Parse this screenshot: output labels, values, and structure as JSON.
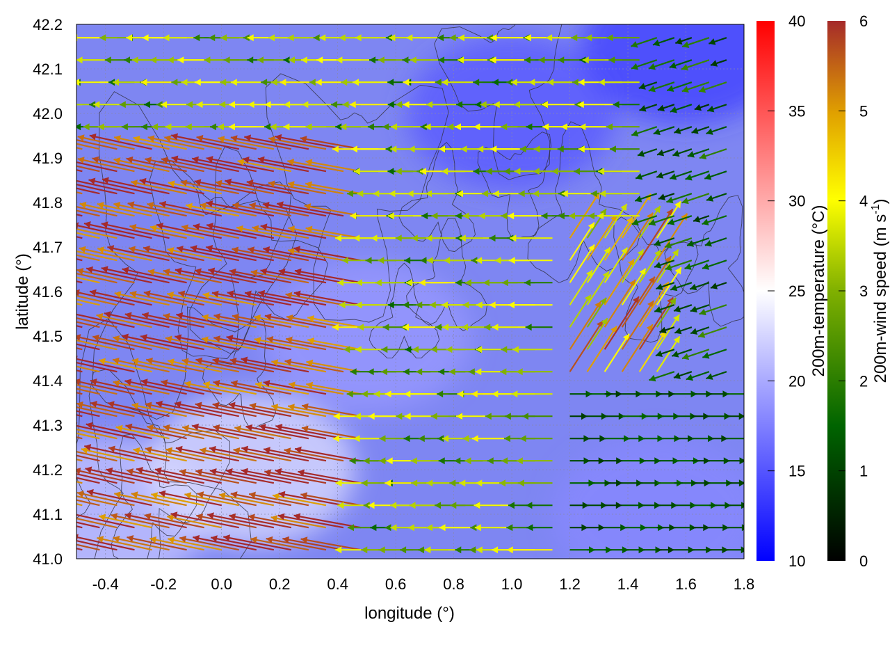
{
  "chart_data": {
    "type": "heatmap",
    "overlay": "wind vector field with terrain contour lines",
    "xlabel": "longitude (°)",
    "ylabel": "latitude (°)",
    "xlim": [
      -0.5,
      1.8
    ],
    "ylim": [
      41.0,
      42.2
    ],
    "xticks": [
      "-0.4",
      "-0.2",
      "0.0",
      "0.2",
      "0.4",
      "0.6",
      "0.8",
      "1.0",
      "1.2",
      "1.4",
      "1.6",
      "1.8"
    ],
    "yticks": [
      "41.0",
      "41.1",
      "41.2",
      "41.3",
      "41.4",
      "41.5",
      "41.6",
      "41.7",
      "41.8",
      "41.9",
      "42.0",
      "42.1",
      "42.2"
    ],
    "grid": true,
    "temperature_colorbar": {
      "label": "200m-temperature (°C)",
      "range": [
        10,
        40
      ],
      "ticks": [
        "10",
        "15",
        "20",
        "25",
        "30",
        "35",
        "40"
      ],
      "colors": [
        "#0000ff",
        "#ffffff",
        "#ff0000"
      ]
    },
    "wind_colorbar": {
      "label_main": "200m-wind speed (m s",
      "label_sup": "-1",
      "label_end": ")",
      "range": [
        0,
        6
      ],
      "ticks": [
        "0",
        "1",
        "2",
        "3",
        "4",
        "5",
        "6"
      ],
      "colors": [
        "#000000",
        "#006400",
        "#80b000",
        "#ffff00",
        "#e0a000",
        "#a52a2a"
      ]
    },
    "temperature_field": {
      "description": "mostly 15-21 °C; coldest in the north-east, warmest south-west of the domain",
      "samples": [
        {
          "lon": -0.4,
          "lat": 41.1,
          "t": 21.5
        },
        {
          "lon": 0.1,
          "lat": 41.2,
          "t": 23.0
        },
        {
          "lon": 0.5,
          "lat": 41.5,
          "t": 19.0
        },
        {
          "lon": 1.0,
          "lat": 42.0,
          "t": 15.0
        },
        {
          "lon": 1.6,
          "lat": 42.15,
          "t": 13.5
        },
        {
          "lon": 1.5,
          "lat": 41.1,
          "t": 18.0
        }
      ]
    },
    "wind_regions": [
      {
        "lon": [
          -0.5,
          0.5
        ],
        "lat": [
          41.0,
          41.95
        ],
        "direction": "west-north-west flow",
        "speed": "5-6+"
      },
      {
        "lon": [
          0.3,
          1.3
        ],
        "lat": [
          41.5,
          42.2
        ],
        "direction": "westward",
        "speed": "2-4"
      },
      {
        "lon": [
          1.2,
          1.8
        ],
        "lat": [
          41.0,
          41.4
        ],
        "direction": "eastward",
        "speed": "1-2"
      },
      {
        "lon": [
          1.2,
          1.6
        ],
        "lat": [
          41.4,
          41.7
        ],
        "direction": "north-east",
        "speed": "3-6"
      }
    ]
  }
}
